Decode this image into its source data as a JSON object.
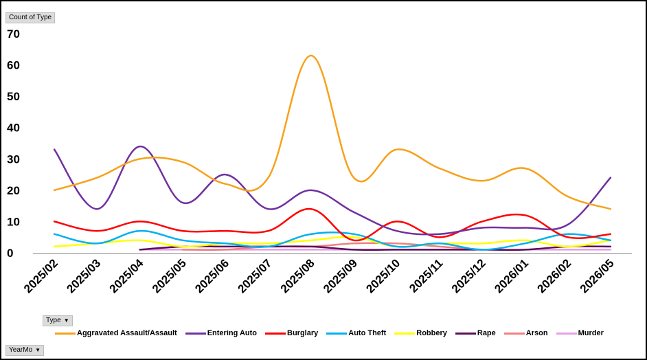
{
  "field_buttons": {
    "value_field": "Count of Type",
    "legend_field": "Type",
    "axis_field": "YearMo"
  },
  "chart_data": {
    "type": "line",
    "ylim": [
      0,
      70
    ],
    "yticks": [
      0,
      10,
      20,
      30,
      40,
      50,
      60,
      70
    ],
    "categories": [
      "2025/02",
      "2025/03",
      "2025/04",
      "2025/05",
      "2025/06",
      "2025/07",
      "2025/08",
      "2025/09",
      "2025/10",
      "2025/11",
      "2025/12",
      "2026/01",
      "2026/02",
      "2026/05"
    ],
    "grid": false,
    "legend_position": "bottom",
    "series": [
      {
        "name": "Aggravated Assault/Assault",
        "color": "#f7a11a",
        "values": [
          20,
          24,
          30,
          29,
          22,
          24,
          63,
          24,
          33,
          27,
          23,
          27,
          18,
          14
        ]
      },
      {
        "name": "Entering Auto",
        "color": "#7030a0",
        "values": [
          33,
          14,
          34,
          16,
          25,
          14,
          20,
          13,
          7,
          6,
          8,
          8,
          9,
          24
        ]
      },
      {
        "name": "Burglary",
        "color": "#ff0000",
        "values": [
          10,
          7,
          10,
          7,
          7,
          7,
          14,
          4,
          10,
          5,
          10,
          12,
          5,
          6
        ]
      },
      {
        "name": "Auto Theft",
        "color": "#00b0f0",
        "values": [
          6,
          3,
          7,
          4,
          3,
          2,
          6,
          6,
          2,
          3,
          1,
          3,
          6,
          4
        ]
      },
      {
        "name": "Robbery",
        "color": "#ffff00",
        "values": [
          2,
          3,
          4,
          2,
          3,
          3,
          4,
          5,
          2,
          3,
          3,
          4,
          2,
          4
        ]
      },
      {
        "name": "Rape",
        "color": "#5b0f5a",
        "values": [
          null,
          null,
          1,
          2,
          2,
          2,
          2,
          1,
          1,
          1,
          1,
          1,
          2,
          2
        ]
      },
      {
        "name": "Arson",
        "color": "#f08080",
        "values": [
          null,
          null,
          null,
          1,
          1,
          2,
          2,
          3,
          3,
          2,
          1,
          null,
          null,
          null
        ]
      },
      {
        "name": "Murder",
        "color": "#e69ee6",
        "values": [
          null,
          null,
          1,
          1,
          1,
          1,
          1,
          1,
          1,
          1,
          1,
          1,
          1,
          1
        ]
      }
    ]
  }
}
